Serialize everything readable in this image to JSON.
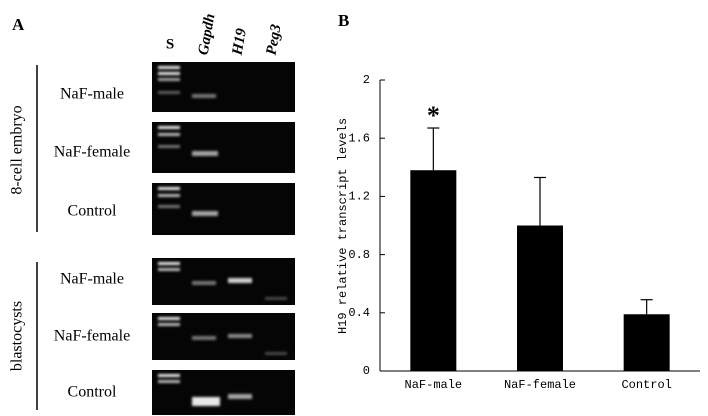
{
  "panel_a": {
    "label": "A",
    "lanes": [
      "S",
      "Gapdh",
      "H19",
      "Peg3"
    ],
    "groups": [
      {
        "name": "8-cell embryo",
        "rows": [
          "NaF-male",
          "NaF-female",
          "Control"
        ]
      },
      {
        "name": "blastocysts",
        "rows": [
          "NaF-male",
          "NaF-female",
          "Control"
        ]
      }
    ]
  },
  "chart_data": {
    "type": "bar",
    "panel_label": "B",
    "y_label": "H19 relative transcript levels",
    "categories": [
      "NaF-male",
      "NaF-female",
      "Control"
    ],
    "values": [
      1.38,
      1.0,
      0.39
    ],
    "errors": [
      0.29,
      0.33,
      0.1
    ],
    "color": "#000000",
    "annotation": "*",
    "ylim": [
      0,
      2
    ],
    "yticks": [
      0,
      0.4,
      0.8,
      1.2,
      1.6,
      2
    ]
  }
}
